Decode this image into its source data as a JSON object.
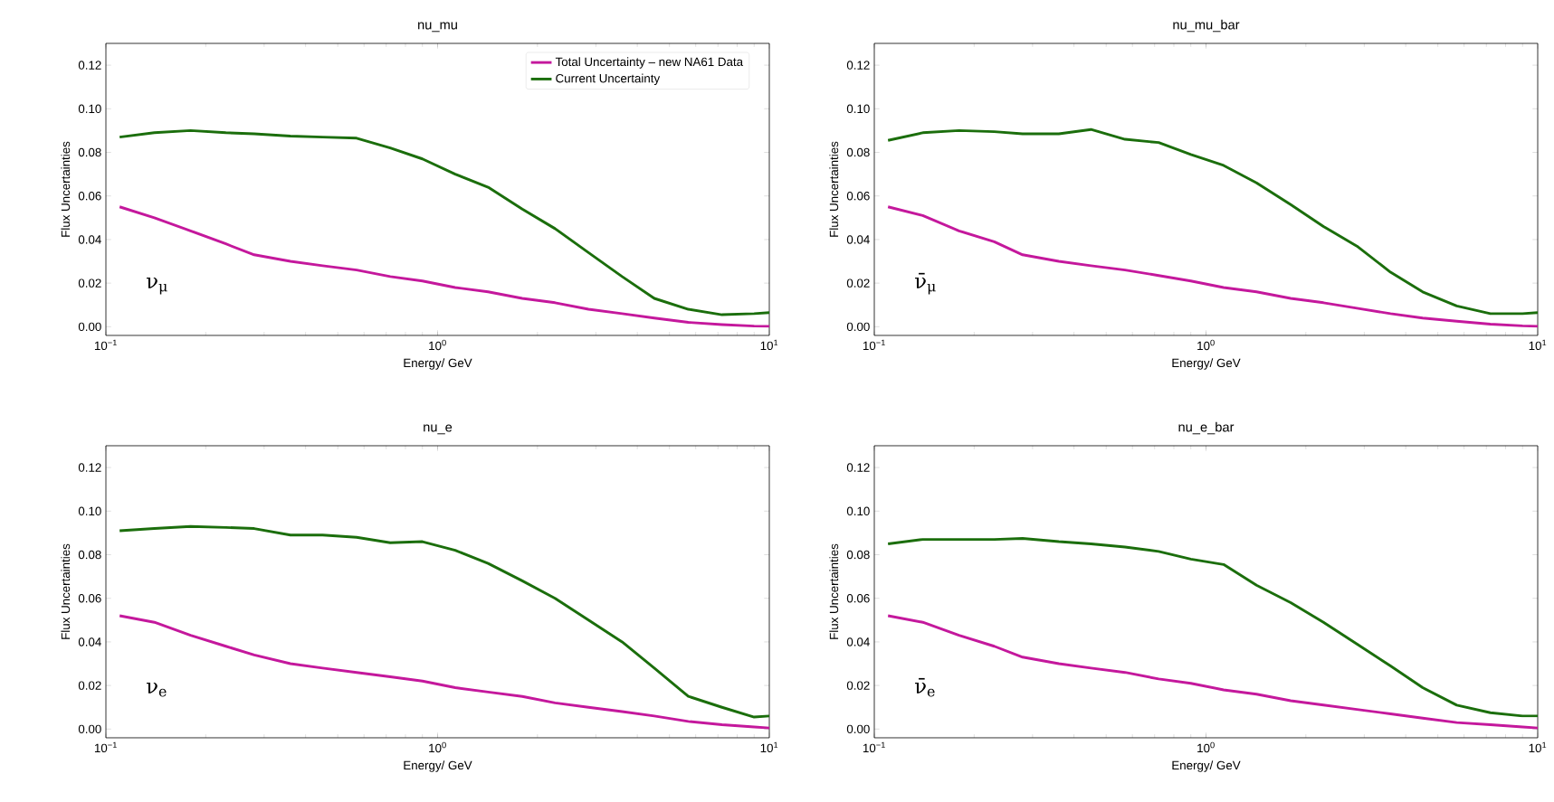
{
  "chart_data": [
    {
      "type": "line",
      "title": "nu_mu",
      "xlabel": "Energy/ GeV",
      "ylabel": "Flux Uncertainties",
      "log": "x",
      "legend": "top right",
      "annotations": [
        "ν$_{μ}$"
      ],
      "xlim": [
        0.1,
        10
      ],
      "ylim": [
        -0.004,
        0.13
      ],
      "xticks": [
        {
          "value": 0.1,
          "label": "10$^{−1}$"
        },
        {
          "value": 1,
          "label": "10$^{0}$"
        },
        {
          "value": 10,
          "label": "10$^{1}$"
        }
      ],
      "yticks": [
        {
          "value": 0,
          "label": "0.00"
        },
        {
          "value": 0.02,
          "label": "0.02"
        },
        {
          "value": 0.04,
          "label": "0.04"
        },
        {
          "value": 0.06,
          "label": "0.06"
        },
        {
          "value": 0.08,
          "label": "0.08"
        },
        {
          "value": 0.1,
          "label": "0.10"
        },
        {
          "value": 0.12,
          "label": "0.12"
        }
      ],
      "x": [
        0.11,
        0.14,
        0.18,
        0.23,
        0.28,
        0.36,
        0.45,
        0.57,
        0.72,
        0.9,
        1.13,
        1.42,
        1.8,
        2.26,
        2.85,
        3.6,
        4.5,
        5.7,
        7.2,
        9,
        10
      ],
      "series": [
        {
          "name": "Total Uncertainty – new NA61 Data",
          "color": "#c4189c",
          "values": [
            0.055,
            0.05,
            0.044,
            0.038,
            0.033,
            0.03,
            0.028,
            0.026,
            0.023,
            0.021,
            0.018,
            0.016,
            0.013,
            0.011,
            0.008,
            0.006,
            0.004,
            0.002,
            0.001,
            0.0003,
            0.0002
          ]
        },
        {
          "name": "Current Uncertainty",
          "color": "#1b6e0c",
          "values": [
            0.087,
            0.089,
            0.09,
            0.089,
            0.0885,
            0.0875,
            0.087,
            0.0865,
            0.082,
            0.077,
            0.07,
            0.064,
            0.054,
            0.045,
            0.034,
            0.023,
            0.013,
            0.008,
            0.0055,
            0.006,
            0.0065
          ]
        }
      ]
    },
    {
      "type": "line",
      "title": "nu_mu_bar",
      "xlabel": "Energy/ GeV",
      "ylabel": "Flux Uncertainties",
      "log": "x",
      "annotations": [
        "ν̄$_{μ}$"
      ],
      "xlim": [
        0.1,
        10
      ],
      "ylim": [
        -0.004,
        0.13
      ],
      "xticks": [
        {
          "value": 0.1,
          "label": "10$^{−1}$"
        },
        {
          "value": 1,
          "label": "10$^{0}$"
        },
        {
          "value": 10,
          "label": "10$^{1}$"
        }
      ],
      "yticks": [
        {
          "value": 0,
          "label": "0.00"
        },
        {
          "value": 0.02,
          "label": "0.02"
        },
        {
          "value": 0.04,
          "label": "0.04"
        },
        {
          "value": 0.06,
          "label": "0.06"
        },
        {
          "value": 0.08,
          "label": "0.08"
        },
        {
          "value": 0.1,
          "label": "0.10"
        },
        {
          "value": 0.12,
          "label": "0.12"
        }
      ],
      "x": [
        0.11,
        0.14,
        0.18,
        0.23,
        0.28,
        0.36,
        0.45,
        0.57,
        0.72,
        0.9,
        1.13,
        1.42,
        1.8,
        2.26,
        2.85,
        3.6,
        4.5,
        5.7,
        7.2,
        9,
        10
      ],
      "series": [
        {
          "color": "#c4189c",
          "values": [
            0.055,
            0.051,
            0.044,
            0.039,
            0.033,
            0.03,
            0.028,
            0.026,
            0.0235,
            0.021,
            0.018,
            0.016,
            0.013,
            0.011,
            0.0085,
            0.006,
            0.004,
            0.0025,
            0.0012,
            0.0004,
            0.0002
          ]
        },
        {
          "color": "#1b6e0c",
          "values": [
            0.0855,
            0.089,
            0.09,
            0.0895,
            0.0885,
            0.0885,
            0.0905,
            0.086,
            0.0845,
            0.079,
            0.074,
            0.066,
            0.056,
            0.046,
            0.037,
            0.025,
            0.016,
            0.0095,
            0.006,
            0.006,
            0.0065
          ]
        }
      ]
    },
    {
      "type": "line",
      "title": "nu_e",
      "xlabel": "Energy/ GeV",
      "ylabel": "Flux Uncertainties",
      "log": "x",
      "annotations": [
        "ν$_{e}$"
      ],
      "xlim": [
        0.1,
        10
      ],
      "ylim": [
        -0.004,
        0.13
      ],
      "xticks": [
        {
          "value": 0.1,
          "label": "10$^{−1}$"
        },
        {
          "value": 1,
          "label": "10$^{0}$"
        },
        {
          "value": 10,
          "label": "10$^{1}$"
        }
      ],
      "yticks": [
        {
          "value": 0,
          "label": "0.00"
        },
        {
          "value": 0.02,
          "label": "0.02"
        },
        {
          "value": 0.04,
          "label": "0.04"
        },
        {
          "value": 0.06,
          "label": "0.06"
        },
        {
          "value": 0.08,
          "label": "0.08"
        },
        {
          "value": 0.1,
          "label": "0.10"
        },
        {
          "value": 0.12,
          "label": "0.12"
        }
      ],
      "x": [
        0.11,
        0.14,
        0.18,
        0.23,
        0.28,
        0.36,
        0.45,
        0.57,
        0.72,
        0.9,
        1.13,
        1.42,
        1.8,
        2.26,
        2.85,
        3.6,
        4.5,
        5.7,
        7.2,
        9,
        10
      ],
      "series": [
        {
          "color": "#c4189c",
          "values": [
            0.052,
            0.049,
            0.043,
            0.038,
            0.034,
            0.03,
            0.028,
            0.026,
            0.024,
            0.022,
            0.019,
            0.017,
            0.015,
            0.012,
            0.01,
            0.008,
            0.006,
            0.0035,
            0.002,
            0.001,
            0.0005
          ]
        },
        {
          "color": "#1b6e0c",
          "values": [
            0.091,
            0.092,
            0.093,
            0.0925,
            0.092,
            0.089,
            0.089,
            0.088,
            0.0855,
            0.086,
            0.082,
            0.076,
            0.068,
            0.06,
            0.05,
            0.04,
            0.028,
            0.015,
            0.01,
            0.0055,
            0.006
          ]
        }
      ]
    },
    {
      "type": "line",
      "title": "nu_e_bar",
      "xlabel": "Energy/ GeV",
      "ylabel": "Flux Uncertainties",
      "log": "x",
      "annotations": [
        "ν̄$_{e}$"
      ],
      "xlim": [
        0.1,
        10
      ],
      "ylim": [
        -0.004,
        0.13
      ],
      "xticks": [
        {
          "value": 0.1,
          "label": "10$^{−1}$"
        },
        {
          "value": 1,
          "label": "10$^{0}$"
        },
        {
          "value": 10,
          "label": "10$^{1}$"
        }
      ],
      "yticks": [
        {
          "value": 0,
          "label": "0.00"
        },
        {
          "value": 0.02,
          "label": "0.02"
        },
        {
          "value": 0.04,
          "label": "0.04"
        },
        {
          "value": 0.06,
          "label": "0.06"
        },
        {
          "value": 0.08,
          "label": "0.08"
        },
        {
          "value": 0.1,
          "label": "0.10"
        },
        {
          "value": 0.12,
          "label": "0.12"
        }
      ],
      "x": [
        0.11,
        0.14,
        0.18,
        0.23,
        0.28,
        0.36,
        0.45,
        0.57,
        0.72,
        0.9,
        1.13,
        1.42,
        1.8,
        2.26,
        2.85,
        3.6,
        4.5,
        5.7,
        7.2,
        9,
        10
      ],
      "series": [
        {
          "color": "#c4189c",
          "values": [
            0.052,
            0.049,
            0.043,
            0.038,
            0.033,
            0.03,
            0.028,
            0.026,
            0.023,
            0.021,
            0.018,
            0.016,
            0.013,
            0.011,
            0.009,
            0.007,
            0.005,
            0.003,
            0.002,
            0.001,
            0.0005
          ]
        },
        {
          "color": "#1b6e0c",
          "values": [
            0.085,
            0.087,
            0.087,
            0.087,
            0.0875,
            0.086,
            0.085,
            0.0835,
            0.0815,
            0.078,
            0.0755,
            0.066,
            0.058,
            0.049,
            0.039,
            0.029,
            0.019,
            0.011,
            0.0075,
            0.006,
            0.006
          ]
        }
      ]
    }
  ]
}
